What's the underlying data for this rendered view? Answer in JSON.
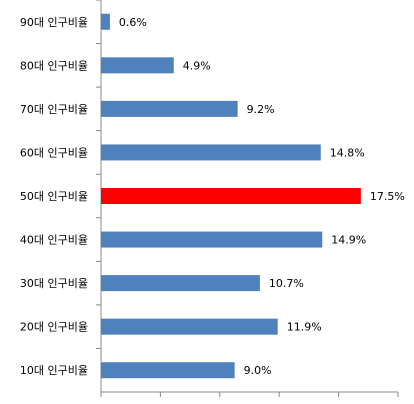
{
  "chart_data": {
    "type": "hbar",
    "categories": [
      "90대 인구비율",
      "80대 인구비율",
      "70대 인구비율",
      "60대 인구비율",
      "50대 인구비율",
      "40대 인구비율",
      "30대 인구비율",
      "20대 인구비율",
      "10대 인구비율"
    ],
    "values": [
      0.6,
      4.9,
      9.2,
      14.8,
      17.5,
      14.9,
      10.7,
      11.9,
      9.0
    ],
    "value_labels": [
      "0.6%",
      "4.9%",
      "9.2%",
      "14.8%",
      "17.5%",
      "14.9%",
      "10.7%",
      "11.9%",
      "9.0%"
    ],
    "colors": [
      "#4f81bd",
      "#4f81bd",
      "#4f81bd",
      "#4f81bd",
      "#ff0000",
      "#4f81bd",
      "#4f81bd",
      "#4f81bd",
      "#4f81bd"
    ],
    "xlim": [
      0,
      20
    ],
    "xticks": [
      0,
      4,
      8,
      12,
      16,
      20
    ]
  }
}
